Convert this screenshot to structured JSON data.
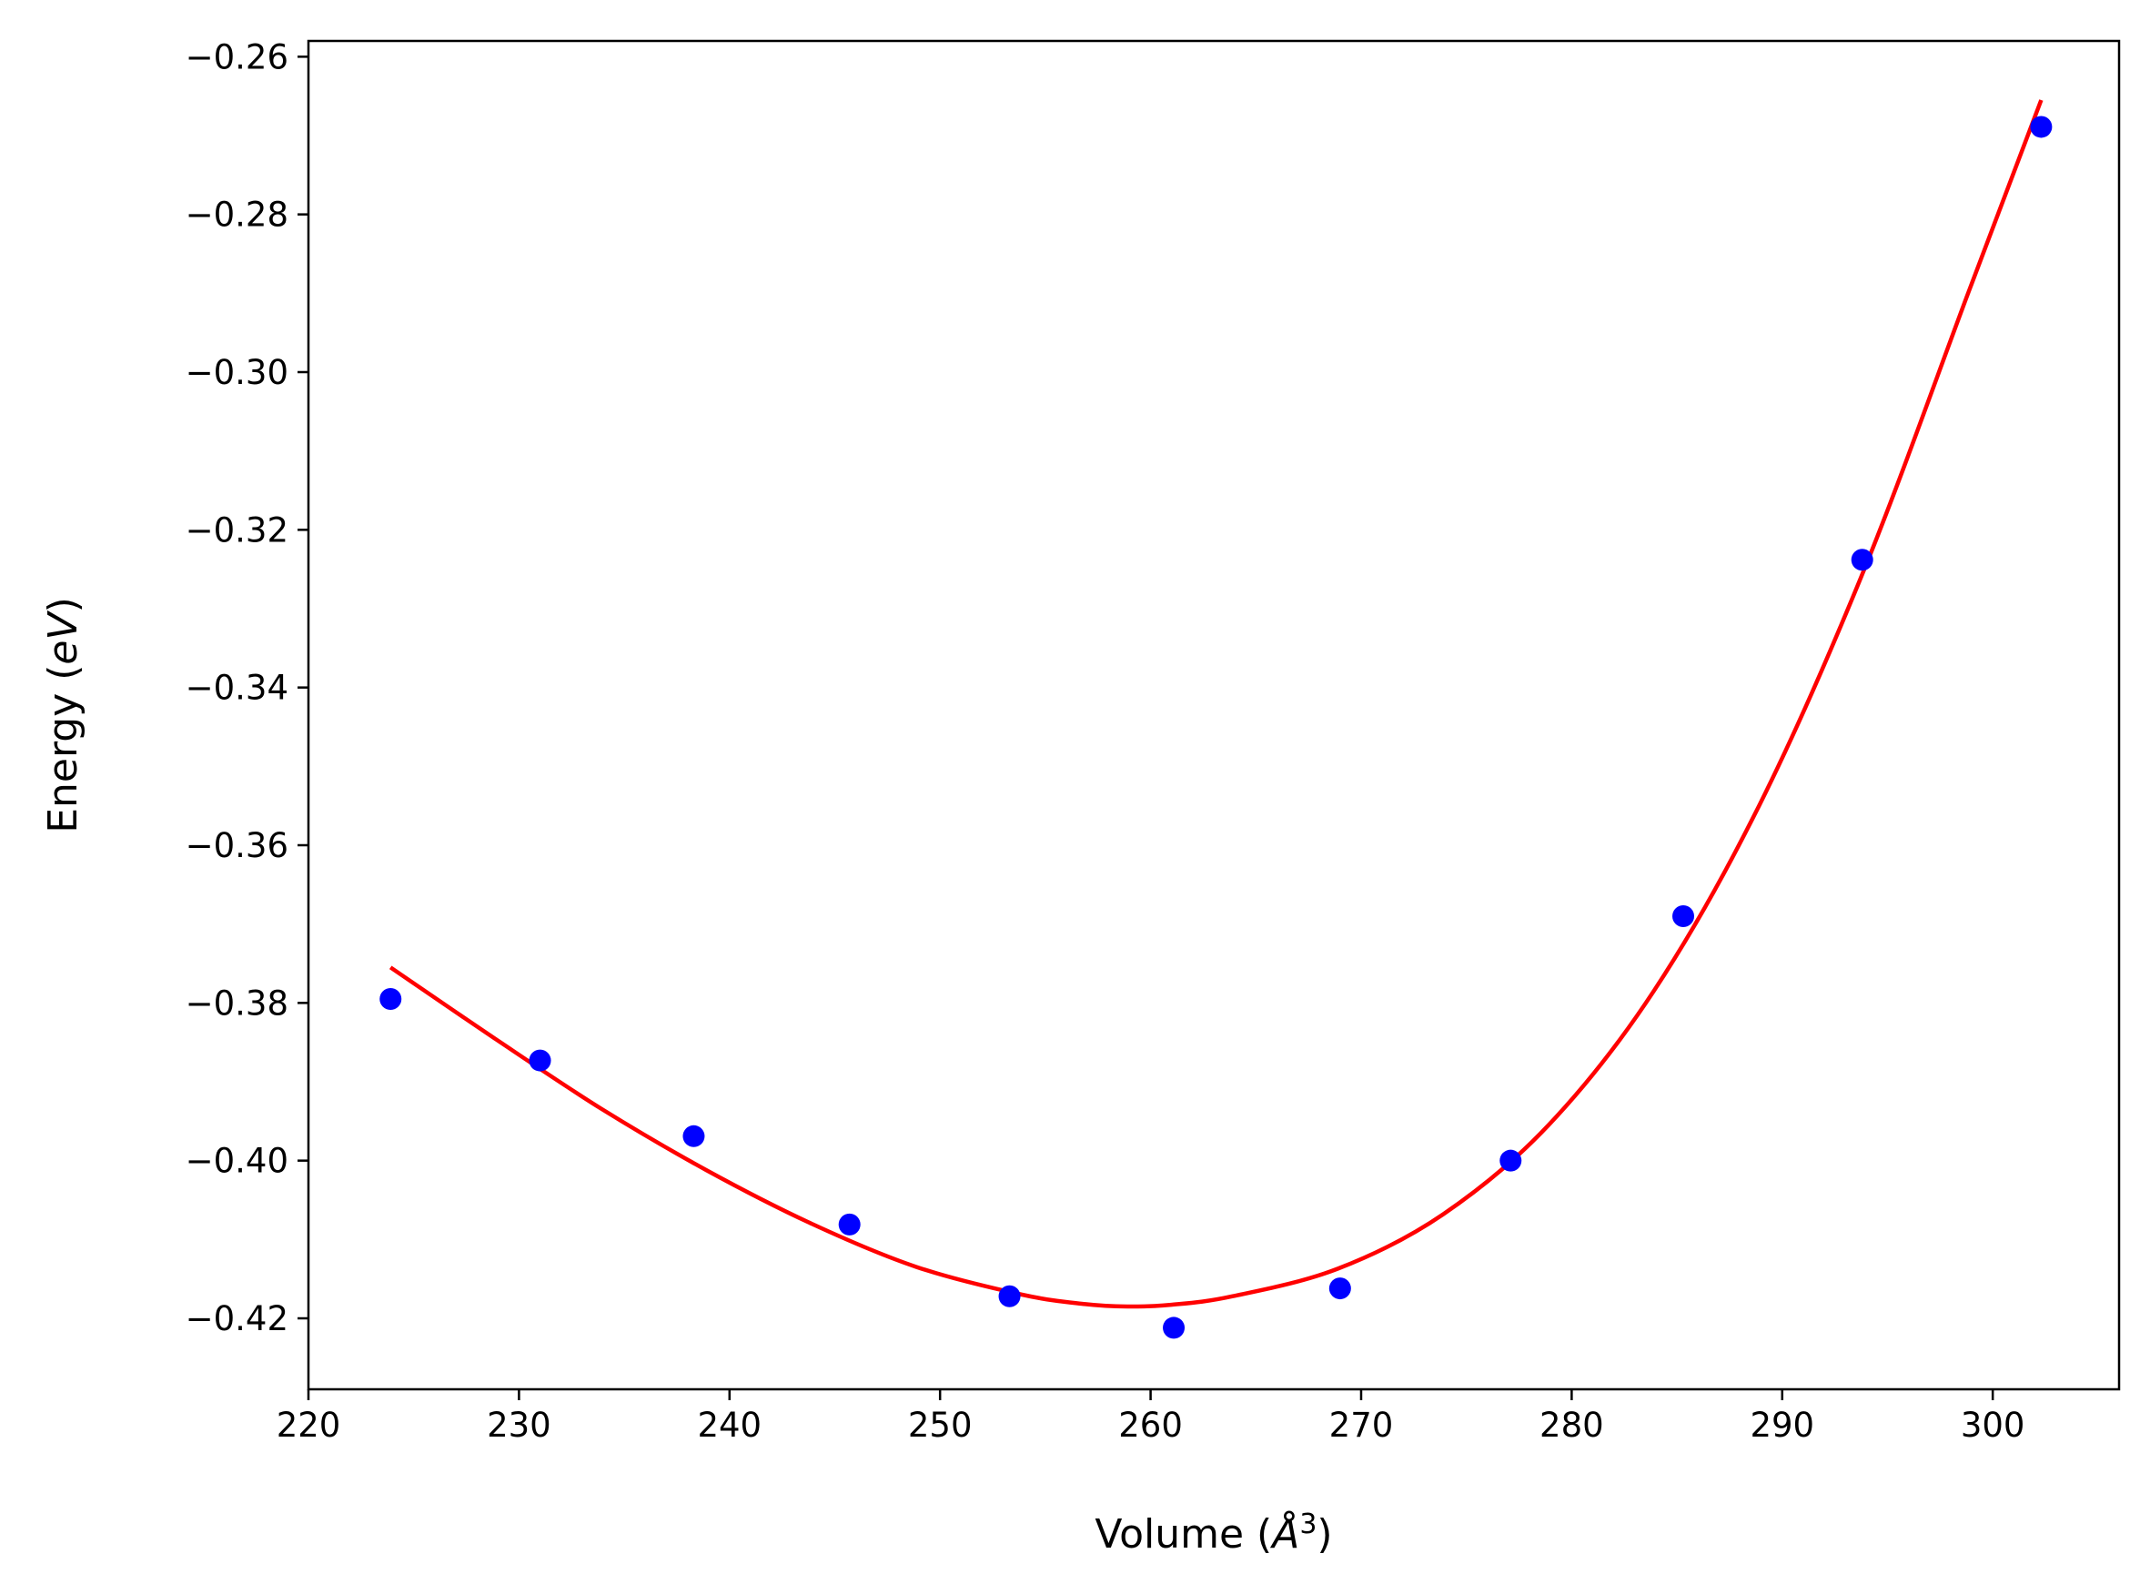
{
  "chart_data": {
    "type": "scatter",
    "title": "",
    "xlabel": "Volume (Å³)",
    "xlabel_parts": {
      "prefix": "Volume (",
      "symbol": "Å",
      "superscript": "3",
      "suffix": ")"
    },
    "ylabel": "Energy (eV)",
    "ylabel_parts": {
      "prefix": "Energy (",
      "unit": "eV",
      "suffix": ")"
    },
    "xlim": [
      220,
      306
    ],
    "ylim": [
      -0.429,
      -0.258
    ],
    "xticks": [
      220,
      230,
      240,
      250,
      260,
      270,
      280,
      290,
      300
    ],
    "xtick_labels": [
      "220",
      "230",
      "240",
      "250",
      "260",
      "270",
      "280",
      "290",
      "300"
    ],
    "yticks": [
      -0.26,
      -0.28,
      -0.3,
      -0.32,
      -0.34,
      -0.36,
      -0.38,
      -0.4,
      -0.42
    ],
    "ytick_labels": [
      "−0.26",
      "−0.28",
      "−0.30",
      "−0.32",
      "−0.34",
      "−0.36",
      "−0.38",
      "−0.40",
      "−0.42"
    ],
    "grid": false,
    "legend": "none",
    "series": [
      {
        "kind": "points",
        "color": "#0000ff",
        "x": [
          223.9,
          231.0,
          238.3,
          245.7,
          253.3,
          261.1,
          269.0,
          277.1,
          285.3,
          293.8,
          302.3
        ],
        "y": [
          -0.3795,
          -0.3873,
          -0.3969,
          -0.4081,
          -0.4172,
          -0.4212,
          -0.4162,
          -0.4,
          -0.369,
          -0.3238,
          -0.2689
        ]
      },
      {
        "kind": "fit_curve",
        "color": "#ff0000",
        "x": [
          223.9,
          228.9,
          233.9,
          238.9,
          243.9,
          248.9,
          253.9,
          256.9,
          258.9,
          260.9,
          263.9,
          268.9,
          273.9,
          278.9,
          283.9,
          288.9,
          293.9,
          298.9,
          302.3
        ],
        "y": [
          -0.3755,
          -0.3846,
          -0.3934,
          -0.4012,
          -0.408,
          -0.4135,
          -0.417,
          -0.4182,
          -0.4185,
          -0.4183,
          -0.4172,
          -0.4137,
          -0.4068,
          -0.3955,
          -0.3785,
          -0.355,
          -0.325,
          -0.2895,
          -0.2655
        ]
      }
    ]
  }
}
